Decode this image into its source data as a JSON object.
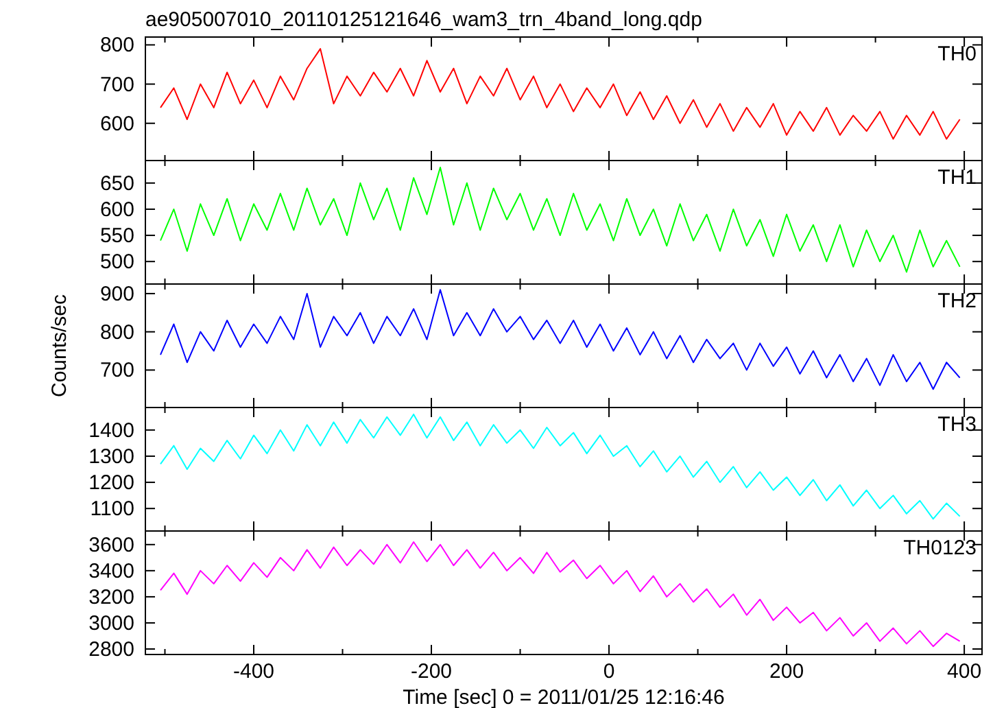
{
  "chart_data": [
    {
      "type": "line",
      "title": "ae905007010_20110125121646_wam3_trn_4band_long.qdp",
      "tick_labels": "y",
      "x": [
        -505,
        -490,
        -475,
        -460,
        -445,
        -430,
        -415,
        -400,
        -385,
        -370,
        -355,
        -340,
        -325,
        -310,
        -295,
        -280,
        -265,
        -250,
        -235,
        -220,
        -205,
        -190,
        -175,
        -160,
        -145,
        -130,
        -115,
        -100,
        -85,
        -70,
        -55,
        -40,
        -25,
        -10,
        5,
        20,
        35,
        50,
        65,
        80,
        95,
        110,
        125,
        140,
        155,
        170,
        185,
        200,
        215,
        230,
        245,
        260,
        275,
        290,
        305,
        320,
        335,
        350,
        365,
        380,
        395
      ],
      "xlim": [
        -522,
        420
      ],
      "xticks": [
        {
          "value": -500,
          "label": null
        },
        -400,
        {
          "value": -300,
          "label": null
        },
        -200,
        {
          "value": -100,
          "label": null
        },
        0,
        {
          "value": 100,
          "label": null
        },
        200,
        {
          "value": 300,
          "label": null
        },
        400
      ],
      "ylim": [
        505,
        820
      ],
      "yticks": [
        600,
        700,
        800
      ],
      "series": [
        {
          "name": "TH0",
          "color": "#ff0000",
          "values": [
            640,
            690,
            610,
            700,
            640,
            730,
            650,
            710,
            640,
            720,
            660,
            740,
            790,
            650,
            720,
            670,
            730,
            680,
            740,
            670,
            760,
            680,
            740,
            650,
            720,
            670,
            740,
            660,
            720,
            640,
            700,
            630,
            690,
            640,
            700,
            620,
            680,
            610,
            670,
            600,
            660,
            590,
            650,
            580,
            640,
            590,
            650,
            570,
            630,
            580,
            640,
            570,
            620,
            580,
            630,
            560,
            620,
            570,
            630,
            560,
            610
          ]
        }
      ]
    },
    {
      "type": "line",
      "tick_labels": "y",
      "x": [
        -505,
        -490,
        -475,
        -460,
        -445,
        -430,
        -415,
        -400,
        -385,
        -370,
        -355,
        -340,
        -325,
        -310,
        -295,
        -280,
        -265,
        -250,
        -235,
        -220,
        -205,
        -190,
        -175,
        -160,
        -145,
        -130,
        -115,
        -100,
        -85,
        -70,
        -55,
        -40,
        -25,
        -10,
        5,
        20,
        35,
        50,
        65,
        80,
        95,
        110,
        125,
        140,
        155,
        170,
        185,
        200,
        215,
        230,
        245,
        260,
        275,
        290,
        305,
        320,
        335,
        350,
        365,
        380,
        395
      ],
      "xlim": [
        -522,
        420
      ],
      "xticks": [
        {
          "value": -500,
          "label": null
        },
        -400,
        {
          "value": -300,
          "label": null
        },
        -200,
        {
          "value": -100,
          "label": null
        },
        0,
        {
          "value": 100,
          "label": null
        },
        200,
        {
          "value": 300,
          "label": null
        },
        400
      ],
      "ylim": [
        457,
        693
      ],
      "yticks": [
        500,
        550,
        600,
        650
      ],
      "series": [
        {
          "name": "TH1",
          "color": "#00ff00",
          "values": [
            540,
            600,
            520,
            610,
            550,
            620,
            540,
            610,
            560,
            630,
            560,
            640,
            570,
            620,
            550,
            650,
            580,
            640,
            560,
            660,
            590,
            680,
            570,
            650,
            560,
            640,
            580,
            630,
            560,
            620,
            550,
            630,
            560,
            610,
            540,
            620,
            550,
            600,
            530,
            610,
            540,
            590,
            520,
            600,
            530,
            580,
            510,
            590,
            520,
            570,
            500,
            570,
            490,
            560,
            500,
            550,
            480,
            560,
            490,
            540,
            490
          ]
        }
      ]
    },
    {
      "type": "line",
      "tick_labels": "y",
      "ylabel": "Counts/sec",
      "x": [
        -505,
        -490,
        -475,
        -460,
        -445,
        -430,
        -415,
        -400,
        -385,
        -370,
        -355,
        -340,
        -325,
        -310,
        -295,
        -280,
        -265,
        -250,
        -235,
        -220,
        -205,
        -190,
        -175,
        -160,
        -145,
        -130,
        -115,
        -100,
        -85,
        -70,
        -55,
        -40,
        -25,
        -10,
        5,
        20,
        35,
        50,
        65,
        80,
        95,
        110,
        125,
        140,
        155,
        170,
        185,
        200,
        215,
        230,
        245,
        260,
        275,
        290,
        305,
        320,
        335,
        350,
        365,
        380,
        395
      ],
      "xlim": [
        -522,
        420
      ],
      "xticks": [
        {
          "value": -500,
          "label": null
        },
        -400,
        {
          "value": -300,
          "label": null
        },
        -200,
        {
          "value": -100,
          "label": null
        },
        0,
        {
          "value": 100,
          "label": null
        },
        200,
        {
          "value": 300,
          "label": null
        },
        400
      ],
      "ylim": [
        602,
        925
      ],
      "yticks": [
        700,
        800,
        900
      ],
      "series": [
        {
          "name": "TH2",
          "color": "#0000ff",
          "values": [
            740,
            820,
            720,
            800,
            750,
            830,
            760,
            820,
            770,
            840,
            780,
            900,
            760,
            840,
            790,
            850,
            770,
            840,
            790,
            860,
            780,
            910,
            790,
            850,
            790,
            860,
            800,
            840,
            780,
            830,
            770,
            830,
            760,
            820,
            750,
            810,
            740,
            800,
            730,
            790,
            720,
            780,
            730,
            770,
            700,
            770,
            710,
            760,
            690,
            750,
            680,
            740,
            670,
            730,
            660,
            740,
            670,
            720,
            650,
            720,
            680
          ]
        }
      ]
    },
    {
      "type": "line",
      "tick_labels": "y",
      "x": [
        -505,
        -490,
        -475,
        -460,
        -445,
        -430,
        -415,
        -400,
        -385,
        -370,
        -355,
        -340,
        -325,
        -310,
        -295,
        -280,
        -265,
        -250,
        -235,
        -220,
        -205,
        -190,
        -175,
        -160,
        -145,
        -130,
        -115,
        -100,
        -85,
        -70,
        -55,
        -40,
        -25,
        -10,
        5,
        20,
        35,
        50,
        65,
        80,
        95,
        110,
        125,
        140,
        155,
        170,
        185,
        200,
        215,
        230,
        245,
        260,
        275,
        290,
        305,
        320,
        335,
        350,
        365,
        380,
        395
      ],
      "xlim": [
        -522,
        420
      ],
      "xticks": [
        {
          "value": -500,
          "label": null
        },
        -400,
        {
          "value": -300,
          "label": null
        },
        -200,
        {
          "value": -100,
          "label": null
        },
        0,
        {
          "value": 100,
          "label": null
        },
        200,
        {
          "value": 300,
          "label": null
        },
        400
      ],
      "ylim": [
        1014,
        1486
      ],
      "yticks": [
        1100,
        1200,
        1300,
        1400
      ],
      "series": [
        {
          "name": "TH3",
          "color": "#00ffff",
          "values": [
            1270,
            1340,
            1250,
            1330,
            1280,
            1360,
            1290,
            1380,
            1310,
            1400,
            1320,
            1420,
            1340,
            1430,
            1350,
            1440,
            1370,
            1450,
            1380,
            1460,
            1370,
            1450,
            1360,
            1430,
            1340,
            1420,
            1350,
            1400,
            1330,
            1410,
            1340,
            1390,
            1310,
            1380,
            1300,
            1340,
            1260,
            1320,
            1240,
            1300,
            1220,
            1280,
            1200,
            1260,
            1180,
            1240,
            1170,
            1220,
            1150,
            1210,
            1130,
            1190,
            1110,
            1170,
            1100,
            1150,
            1080,
            1130,
            1060,
            1120,
            1070
          ]
        }
      ]
    },
    {
      "type": "line",
      "xlabel": "Time [sec] 0 = 2011/01/25 12:16:46",
      "x": [
        -505,
        -490,
        -475,
        -460,
        -445,
        -430,
        -415,
        -400,
        -385,
        -370,
        -355,
        -340,
        -325,
        -310,
        -295,
        -280,
        -265,
        -250,
        -235,
        -220,
        -205,
        -190,
        -175,
        -160,
        -145,
        -130,
        -115,
        -100,
        -85,
        -70,
        -55,
        -40,
        -25,
        -10,
        5,
        20,
        35,
        50,
        65,
        80,
        95,
        110,
        125,
        140,
        155,
        170,
        185,
        200,
        215,
        230,
        245,
        260,
        275,
        290,
        305,
        320,
        335,
        350,
        365,
        380,
        395
      ],
      "xlim": [
        -522,
        420
      ],
      "xticks": [
        {
          "value": -500,
          "label": null
        },
        -400,
        {
          "value": -300,
          "label": null
        },
        -200,
        {
          "value": -100,
          "label": null
        },
        0,
        {
          "value": 100,
          "label": null
        },
        200,
        {
          "value": 300,
          "label": null
        },
        400
      ],
      "ylim": [
        2758,
        3704
      ],
      "yticks": [
        2800,
        3000,
        3200,
        3400,
        3600
      ],
      "series": [
        {
          "name": "TH0123",
          "color": "#ff00ff",
          "values": [
            3250,
            3380,
            3220,
            3400,
            3300,
            3440,
            3320,
            3460,
            3350,
            3500,
            3400,
            3560,
            3420,
            3580,
            3440,
            3560,
            3450,
            3600,
            3460,
            3620,
            3470,
            3600,
            3440,
            3560,
            3420,
            3540,
            3400,
            3500,
            3380,
            3540,
            3390,
            3480,
            3340,
            3440,
            3300,
            3400,
            3240,
            3360,
            3200,
            3300,
            3160,
            3260,
            3120,
            3220,
            3060,
            3180,
            3020,
            3120,
            3000,
            3080,
            2940,
            3040,
            2900,
            3000,
            2860,
            2960,
            2840,
            2940,
            2820,
            2920,
            2860
          ]
        }
      ]
    }
  ]
}
